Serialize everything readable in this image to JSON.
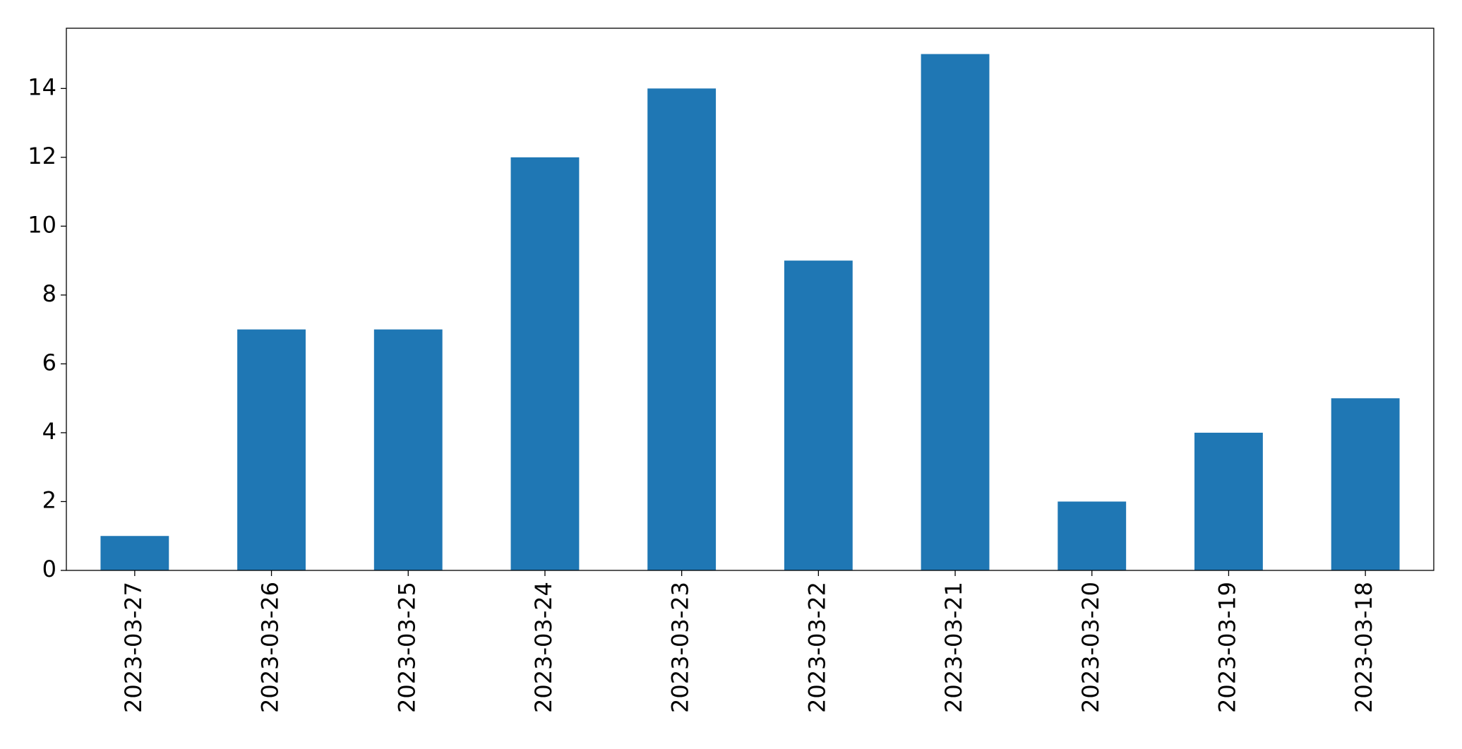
{
  "chart_data": {
    "type": "bar",
    "categories": [
      "2023-03-27",
      "2023-03-26",
      "2023-03-25",
      "2023-03-24",
      "2023-03-23",
      "2023-03-22",
      "2023-03-21",
      "2023-03-20",
      "2023-03-19",
      "2023-03-18"
    ],
    "values": [
      1,
      7,
      7,
      12,
      14,
      9,
      15,
      2,
      4,
      5
    ],
    "color": "#1f77b4",
    "ylim": [
      0,
      15.75
    ],
    "yticks": [
      0,
      2,
      4,
      6,
      8,
      10,
      12,
      14
    ],
    "grid": false
  }
}
